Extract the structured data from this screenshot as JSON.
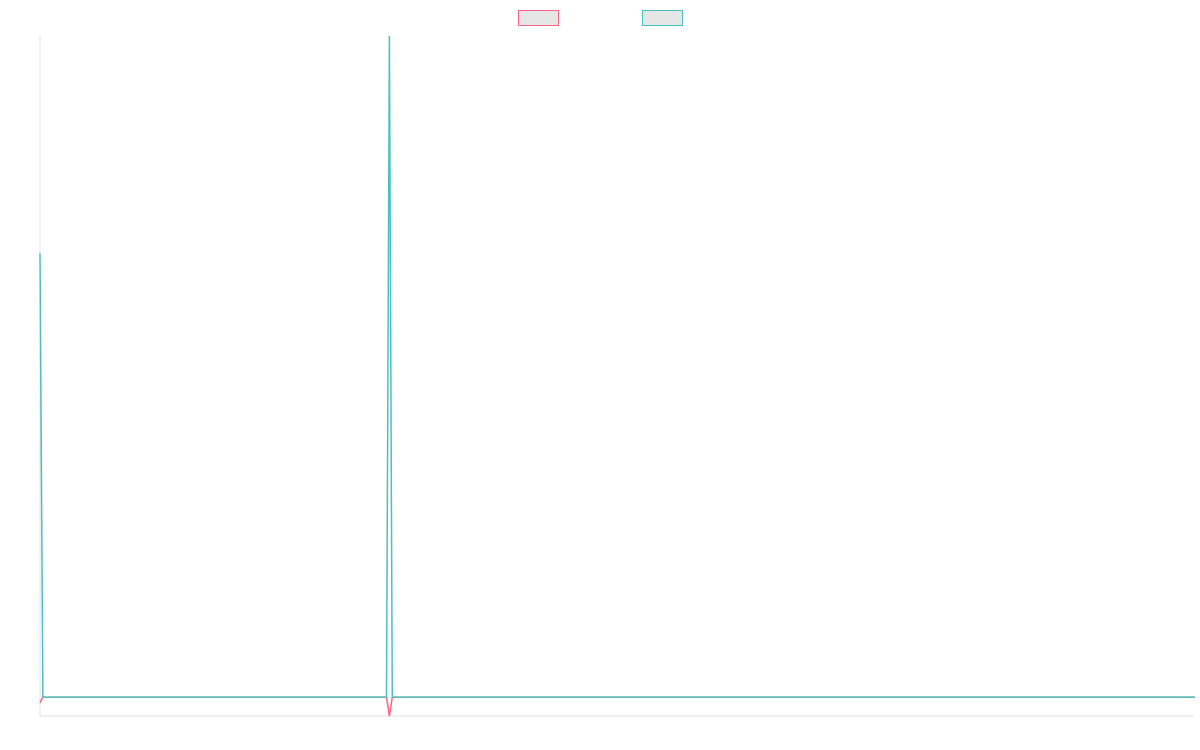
{
  "chart_data": {
    "type": "line",
    "x": [
      0,
      1,
      120,
      121,
      122,
      400
    ],
    "xlim": [
      0,
      400
    ],
    "ylim": [
      -1,
      35
    ],
    "series": [
      {
        "color": "#ff6384",
        "values": [
          -0.3,
          0,
          0,
          -1,
          0,
          0
        ]
      },
      {
        "color": "#4bc0c0",
        "values": [
          23.5,
          0,
          0,
          35,
          0,
          0
        ]
      }
    ]
  }
}
